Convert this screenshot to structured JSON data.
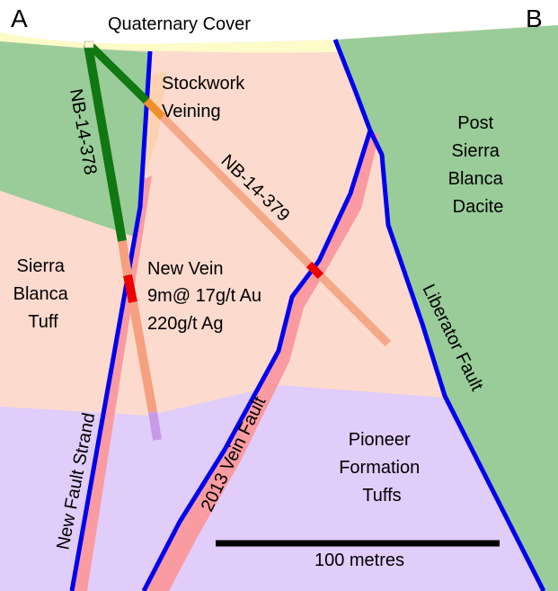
{
  "corners": {
    "left": "A",
    "right": "B"
  },
  "units": {
    "quaternary": "Quaternary Cover",
    "stockwork": [
      "Stockwork",
      "Veining"
    ],
    "post_sierra": [
      "Post",
      "Sierra",
      "Blanca",
      "Dacite"
    ],
    "sierra_tuff": [
      "Sierra",
      "Blanca",
      "Tuff"
    ],
    "pioneer": [
      "Pioneer",
      "Formation",
      "Tuffs"
    ]
  },
  "drillholes": {
    "hole1": "NB-14-378",
    "hole2": "NB-14-379"
  },
  "intercept": [
    "New Vein",
    "9m@ 17g/t Au",
    "220g/t Ag"
  ],
  "faults": {
    "new_strand": "New Fault Strand",
    "vein_2013": "2013 Vein Fault",
    "liberator": "Liberator Fault"
  },
  "scale": {
    "label": "100 metres"
  },
  "colors": {
    "tuff": "#fddace",
    "dacite": "#99cc99",
    "pioneer": "#e0cdfa",
    "cover": "#fdfbc8",
    "stockwork": "#fcd2b0",
    "fault": "#0000ee",
    "vein_zone": "#f99ba0",
    "hole_green": "#117711",
    "hole_salmon": "#f5a080",
    "hole_red": "#ee0000",
    "hole_orange": "#f0902a",
    "hole_purple": "#c89ae8"
  }
}
